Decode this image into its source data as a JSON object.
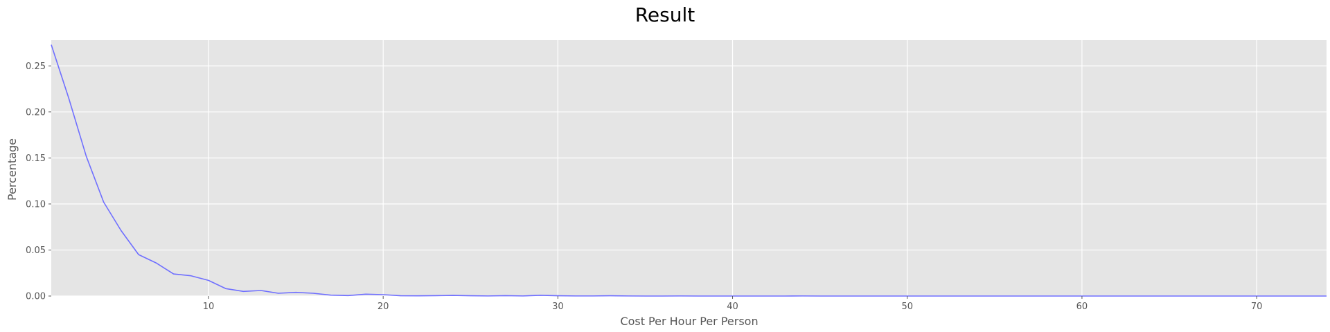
{
  "chart_data": {
    "type": "line",
    "title": "Result",
    "xlabel": "Cost Per Hour Per Person",
    "ylabel": "Percentage",
    "xlim": [
      1,
      74
    ],
    "ylim": [
      0,
      0.278
    ],
    "xticks": [
      "10",
      "20",
      "30",
      "40",
      "50",
      "60",
      "70"
    ],
    "yticks": [
      "0.00",
      "0.05",
      "0.10",
      "0.15",
      "0.20",
      "0.25"
    ],
    "grid": true,
    "background": "#e5e5e5",
    "grid_color": "#ffffff",
    "line_color": "#6f6fff",
    "series": [
      {
        "x": [
          1,
          2,
          3,
          4,
          5,
          6,
          7,
          8,
          9,
          10,
          11,
          12,
          13,
          14,
          15,
          16,
          17,
          18,
          19,
          20,
          21,
          22,
          23,
          24,
          25,
          26,
          27,
          28,
          29,
          30,
          31,
          32,
          33,
          34,
          35,
          36,
          37,
          38,
          39,
          40,
          41,
          42,
          43,
          44,
          45,
          46,
          47,
          48,
          49,
          50,
          51,
          52,
          53,
          54,
          55,
          56,
          57,
          58,
          59,
          60,
          61,
          62,
          63,
          64,
          65,
          66,
          67,
          68,
          69,
          70,
          71,
          72,
          73,
          74
        ],
        "y": [
          0.273,
          0.215,
          0.152,
          0.102,
          0.071,
          0.045,
          0.036,
          0.024,
          0.022,
          0.017,
          0.008,
          0.005,
          0.006,
          0.003,
          0.004,
          0.003,
          0.001,
          0.0005,
          0.002,
          0.0015,
          0.0003,
          0.0002,
          0.0004,
          0.0007,
          0.0003,
          0.0001,
          0.0004,
          0.0001,
          0.0008,
          0.0003,
          0.0001,
          0.0001,
          0.0003,
          0.0001,
          0,
          0,
          0.0001,
          0,
          0,
          0,
          0,
          0,
          0,
          0.0001,
          0,
          0,
          0,
          0,
          0,
          0,
          0,
          0,
          0,
          0,
          0,
          0,
          0,
          0,
          0,
          0,
          0,
          0,
          0,
          0,
          0,
          0,
          0,
          0,
          0,
          0,
          0,
          0,
          0,
          0
        ]
      }
    ]
  }
}
